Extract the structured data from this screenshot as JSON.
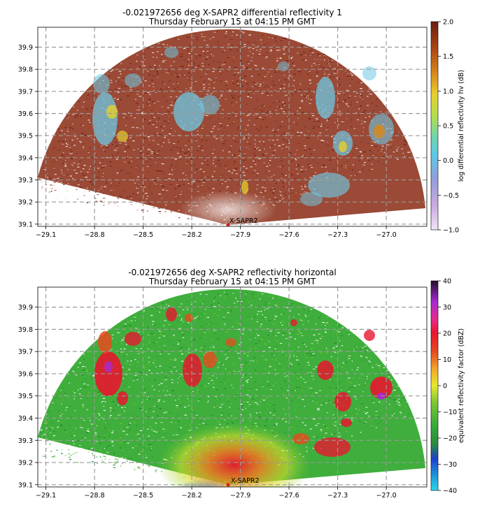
{
  "chart_data": [
    {
      "type": "heatmap",
      "title_line1": "-0.021972656 deg X-SAPR2 differential reflectivity 1",
      "title_line2": "Thursday February 15 at 04:15 PM GMT",
      "xlim": [
        -29.15,
        -26.75
      ],
      "ylim": [
        39.09,
        39.99
      ],
      "xticks": [
        -29.1,
        -28.8,
        -28.5,
        -28.2,
        -27.9,
        -27.6,
        -27.3,
        -27.0
      ],
      "yticks": [
        39.1,
        39.2,
        39.3,
        39.4,
        39.5,
        39.6,
        39.7,
        39.8,
        39.9
      ],
      "xtick_labels": [
        "−29.1",
        "−28.8",
        "−28.5",
        "−28.2",
        "−27.9",
        "−27.6",
        "−27.3",
        "−27.0"
      ],
      "ytick_labels": [
        "39.1",
        "39.2",
        "39.3",
        "39.4",
        "39.5",
        "39.6",
        "39.7",
        "39.8",
        "39.9"
      ],
      "grid": true,
      "radar": {
        "name": "X-SAPR2",
        "lon": -28.02,
        "lat": 39.09
      },
      "colorbar": {
        "label": "log differential reflectivity hv (dB)",
        "range": [
          -1.0,
          2.0
        ],
        "ticks": [
          -1.0,
          -0.5,
          0.0,
          0.5,
          1.0,
          1.5,
          2.0
        ],
        "tick_labels": [
          "−1.0",
          "−0.5",
          "0.0",
          "0.5",
          "1.0",
          "1.5",
          "2.0"
        ],
        "stops": [
          {
            "v": 0.0,
            "c": "#f0e4f4"
          },
          {
            "v": 0.12,
            "c": "#c9a8e2"
          },
          {
            "v": 0.25,
            "c": "#8f9fdc"
          },
          {
            "v": 0.36,
            "c": "#5cc9e6"
          },
          {
            "v": 0.45,
            "c": "#6fd6a8"
          },
          {
            "v": 0.55,
            "c": "#b6de4a"
          },
          {
            "v": 0.65,
            "c": "#e9cf28"
          },
          {
            "v": 0.75,
            "c": "#d88a1a"
          },
          {
            "v": 0.86,
            "c": "#b24a12"
          },
          {
            "v": 1.0,
            "c": "#6b1d12"
          }
        ]
      }
    },
    {
      "type": "heatmap",
      "title_line1": "-0.021972656 deg X-SAPR2 reflectivity horizontal",
      "title_line2": "Thursday February 15 at 04:15 PM GMT",
      "xlim": [
        -29.15,
        -26.75
      ],
      "ylim": [
        39.09,
        39.99
      ],
      "xticks": [
        -29.1,
        -28.8,
        -28.5,
        -28.2,
        -27.9,
        -27.6,
        -27.3,
        -27.0
      ],
      "yticks": [
        39.1,
        39.2,
        39.3,
        39.4,
        39.5,
        39.6,
        39.7,
        39.8,
        39.9
      ],
      "xtick_labels": [
        "−29.1",
        "−28.8",
        "−28.5",
        "−28.2",
        "−27.9",
        "−27.6",
        "−27.3",
        "−27.0"
      ],
      "ytick_labels": [
        "39.1",
        "39.2",
        "39.3",
        "39.4",
        "39.5",
        "39.6",
        "39.7",
        "39.8",
        "39.9"
      ],
      "grid": true,
      "radar": {
        "name": "X-SAPR2",
        "lon": -28.02,
        "lat": 39.09
      },
      "colorbar": {
        "label": "equivalent reflectivity factor (dBZ)",
        "range": [
          -40,
          40
        ],
        "ticks": [
          -40,
          -30,
          -20,
          -10,
          0,
          10,
          20,
          30,
          40
        ],
        "tick_labels": [
          "−40",
          "−30",
          "−20",
          "−10",
          "0",
          "10",
          "20",
          "30",
          "40"
        ],
        "stops": [
          {
            "v": 0.0,
            "c": "#27d8ee"
          },
          {
            "v": 0.08,
            "c": "#1d8fd8"
          },
          {
            "v": 0.15,
            "c": "#1f3fd0"
          },
          {
            "v": 0.22,
            "c": "#2a8a3e"
          },
          {
            "v": 0.3,
            "c": "#2fa83a"
          },
          {
            "v": 0.42,
            "c": "#7ec82f"
          },
          {
            "v": 0.5,
            "c": "#e8e82a"
          },
          {
            "v": 0.58,
            "c": "#f0a824"
          },
          {
            "v": 0.66,
            "c": "#e84a1e"
          },
          {
            "v": 0.75,
            "c": "#e8162e"
          },
          {
            "v": 0.82,
            "c": "#e82a8e"
          },
          {
            "v": 0.9,
            "c": "#a62ad2"
          },
          {
            "v": 1.0,
            "c": "#201028"
          }
        ]
      }
    }
  ]
}
